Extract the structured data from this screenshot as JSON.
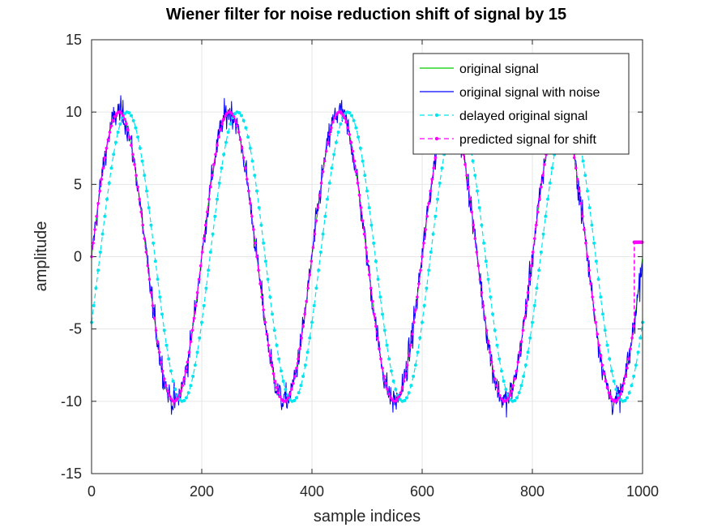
{
  "chart_data": {
    "type": "line",
    "title": "Wiener filter for noise reduction shift of signal by 15",
    "xlabel": "sample indices",
    "ylabel": "amplitude",
    "xlim": [
      0,
      1000
    ],
    "ylim": [
      -15,
      15
    ],
    "xticks": [
      0,
      200,
      400,
      600,
      800,
      1000
    ],
    "yticks": [
      -15,
      -10,
      -5,
      0,
      5,
      10,
      15
    ],
    "grid": true,
    "legend_position": "top-right",
    "series": [
      {
        "name": "original signal",
        "color": "#00cc00",
        "style": "solid",
        "marker": "none",
        "function": "10*sin(2*pi*n/200)",
        "x_range": [
          0,
          1000
        ]
      },
      {
        "name": "original signal with noise",
        "color": "#0000ff",
        "style": "solid",
        "marker": "none",
        "function": "10*sin(2*pi*n/200) + noise",
        "x_range": [
          0,
          1000
        ]
      },
      {
        "name": "delayed original signal",
        "color": "#00e5ee",
        "style": "dashed",
        "marker": "dot",
        "function": "10*sin(2*pi*(n-15)/200)",
        "x_range": [
          0,
          1000
        ]
      },
      {
        "name": "predicted signal for shift",
        "color": "#ff00ff",
        "style": "dashed",
        "marker": "dot",
        "function": "10*sin(2*pi*n/200)",
        "x_range": [
          0,
          985
        ],
        "tail": [
          [
            985,
            1
          ],
          [
            1000,
            1
          ]
        ]
      }
    ]
  }
}
